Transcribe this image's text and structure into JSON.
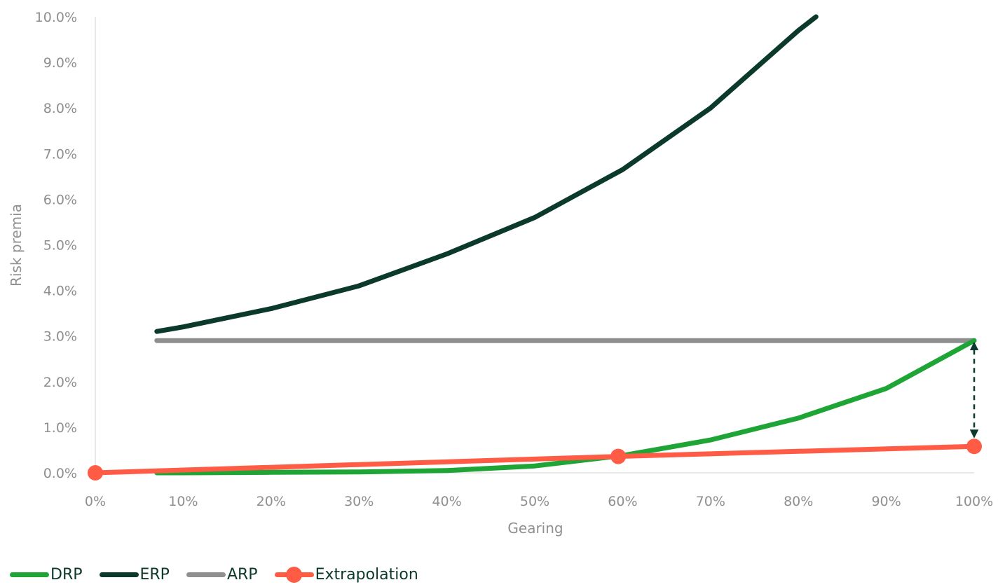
{
  "chart_data": {
    "type": "line",
    "xlabel": "Gearing",
    "ylabel": "Risk premia",
    "xlim": [
      0,
      100
    ],
    "ylim": [
      0,
      10
    ],
    "x_ticks": [
      "0%",
      "10%",
      "20%",
      "30%",
      "40%",
      "50%",
      "60%",
      "70%",
      "80%",
      "90%",
      "100%"
    ],
    "y_ticks": [
      "0.0%",
      "1.0%",
      "2.0%",
      "3.0%",
      "4.0%",
      "5.0%",
      "6.0%",
      "7.0%",
      "8.0%",
      "9.0%",
      "10.0%"
    ],
    "series": [
      {
        "name": "DRP",
        "color": "#1fa535",
        "marker": "none",
        "x": [
          7,
          10,
          20,
          30,
          40,
          50,
          60,
          70,
          80,
          90,
          100
        ],
        "y": [
          0.0,
          0.0,
          0.01,
          0.02,
          0.05,
          0.15,
          0.38,
          0.72,
          1.2,
          1.85,
          2.9
        ]
      },
      {
        "name": "ERP",
        "color": "#0b3a2c",
        "marker": "none",
        "x": [
          7,
          10,
          20,
          30,
          40,
          50,
          60,
          70,
          80,
          82
        ],
        "y": [
          3.1,
          3.2,
          3.6,
          4.1,
          4.8,
          5.6,
          6.65,
          8.0,
          9.7,
          10.0
        ]
      },
      {
        "name": "ARP",
        "color": "#8f8f8f",
        "marker": "none",
        "x": [
          7,
          100
        ],
        "y": [
          2.9,
          2.9
        ]
      },
      {
        "name": "Extrapolation",
        "color": "#ff5b45",
        "marker": "circle",
        "x": [
          0,
          59.5,
          100
        ],
        "y": [
          0.0,
          0.36,
          0.58
        ]
      }
    ],
    "annotations": [
      {
        "type": "double-arrow",
        "style": "dashed",
        "color": "#0b3a2c",
        "x": 100,
        "y_from": 0.58,
        "y_to": 2.9
      }
    ],
    "legend_position": "bottom-left",
    "grid": false
  }
}
